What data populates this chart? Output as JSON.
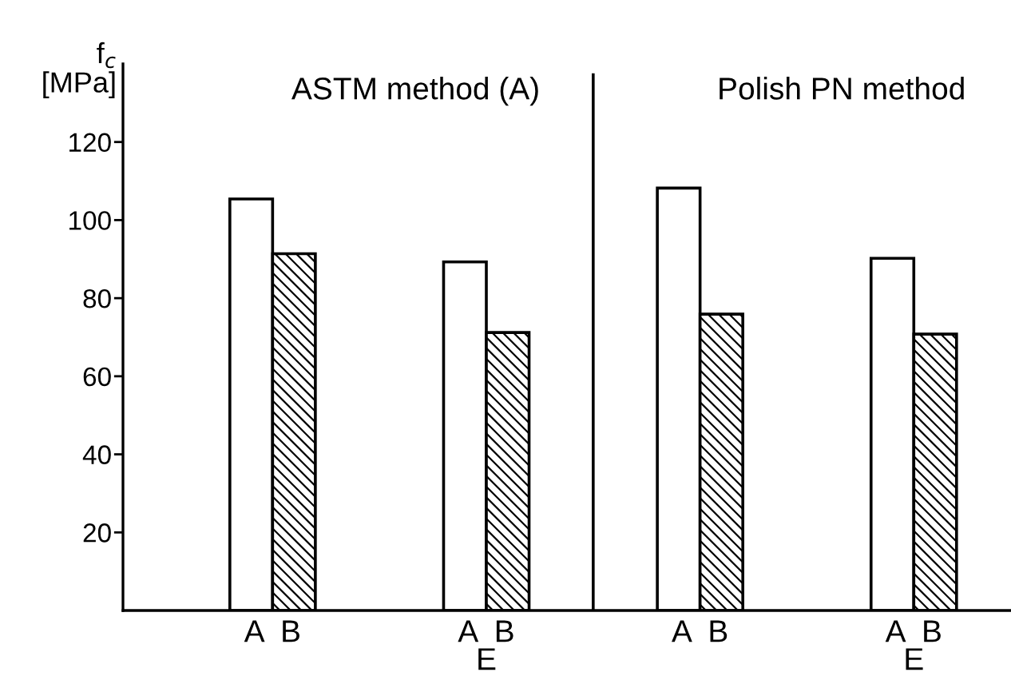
{
  "chart_data": {
    "type": "bar",
    "ylabel": "f$_{c}$ [MPa]",
    "categories": [
      "A  B",
      "A  B\nE",
      "A  B",
      "A  B\nE"
    ],
    "ylim": [
      0,
      140
    ],
    "yticks": [
      20,
      40,
      60,
      80,
      100,
      120
    ],
    "series": [
      {
        "color": "#ffffff",
        "values": [
          105.4,
          89.3,
          108.2,
          90.2
        ]
      },
      {
        "color": "#000000",
        "values": [
          91.4,
          71.2,
          75.9,
          70.8
        ]
      }
    ],
    "annotations": [
      "ASTM method (A)",
      "Polish PN method"
    ],
    "grid": false
  }
}
